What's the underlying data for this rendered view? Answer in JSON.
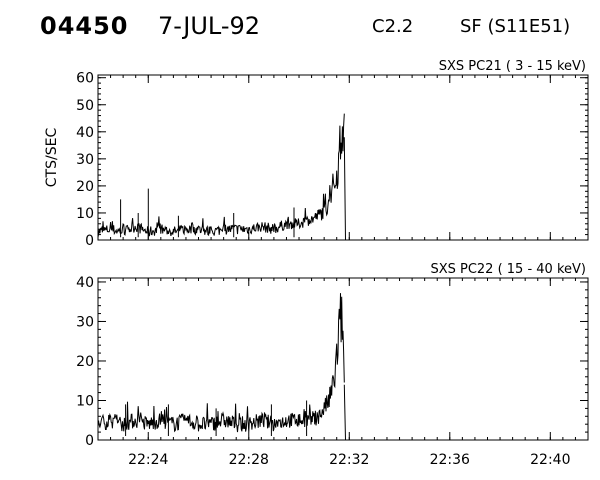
{
  "header": {
    "event_id": "04450",
    "date": "7-JUL-92",
    "goes_class": "C2.2",
    "flare_location": "SF (S11E51)"
  },
  "ylabel": "CTS/SEC",
  "x_tick_labels": [
    "22:24",
    "22:28",
    "22:32",
    "22:36",
    "22:40"
  ],
  "chart_data": [
    {
      "type": "line",
      "title": "SXS PC21 ( 3 - 15 keV)",
      "ylabel": "CTS/SEC",
      "xlabel": "",
      "xlim": [
        "22:22",
        "22:41.5"
      ],
      "ylim": [
        0,
        61
      ],
      "yticks": [
        0,
        10,
        20,
        30,
        40,
        50,
        60
      ],
      "x_unit": "minutes after 22:00 UT",
      "series": [
        {
          "x": [
            22.0,
            22.5,
            23.0,
            23.5,
            24.0,
            24.5,
            25.0,
            25.5,
            26.0,
            26.5,
            27.0,
            27.5,
            28.0,
            28.5,
            29.0,
            29.5,
            30.0,
            30.3,
            30.6,
            30.9,
            31.1,
            31.3,
            31.5,
            31.6,
            31.7,
            31.8,
            31.85
          ],
          "y": [
            3,
            4,
            3,
            5,
            3,
            4,
            3,
            4,
            4,
            3,
            4,
            4,
            4,
            5,
            4,
            6,
            6,
            7,
            8,
            10,
            12,
            18,
            24,
            30,
            43,
            38,
            0
          ],
          "spikes": [
            {
              "x": 22.9,
              "y": 15
            },
            {
              "x": 24.0,
              "y": 19
            },
            {
              "x": 23.6,
              "y": 10
            },
            {
              "x": 25.2,
              "y": 9
            },
            {
              "x": 27.4,
              "y": 10
            },
            {
              "x": 29.8,
              "y": 12
            }
          ]
        }
      ]
    },
    {
      "type": "line",
      "title": "SXS PC22 ( 15 - 40 keV)",
      "ylabel": "",
      "xlabel": "",
      "xlim": [
        "22:22",
        "22:41.5"
      ],
      "ylim": [
        0,
        41
      ],
      "yticks": [
        0,
        10,
        20,
        30,
        40
      ],
      "x_unit": "minutes after 22:00 UT",
      "series": [
        {
          "x": [
            22.0,
            22.5,
            23.0,
            23.5,
            24.0,
            24.5,
            25.0,
            25.5,
            26.0,
            26.5,
            27.0,
            27.5,
            28.0,
            28.5,
            29.0,
            29.5,
            30.0,
            30.4,
            30.8,
            31.0,
            31.2,
            31.4,
            31.5,
            31.6,
            31.7,
            31.8,
            31.85
          ],
          "y": [
            4,
            5,
            4,
            5,
            4,
            5,
            4,
            5,
            4,
            4,
            5,
            4,
            4,
            5,
            4,
            5,
            5,
            5,
            6,
            8,
            10,
            15,
            21,
            27,
            33,
            14,
            0
          ],
          "spikes": [
            {
              "x": 23.1,
              "y": 9
            },
            {
              "x": 24.8,
              "y": 9
            },
            {
              "x": 26.7,
              "y": 8
            },
            {
              "x": 28.9,
              "y": 9
            },
            {
              "x": 30.3,
              "y": 10
            }
          ]
        }
      ]
    }
  ]
}
